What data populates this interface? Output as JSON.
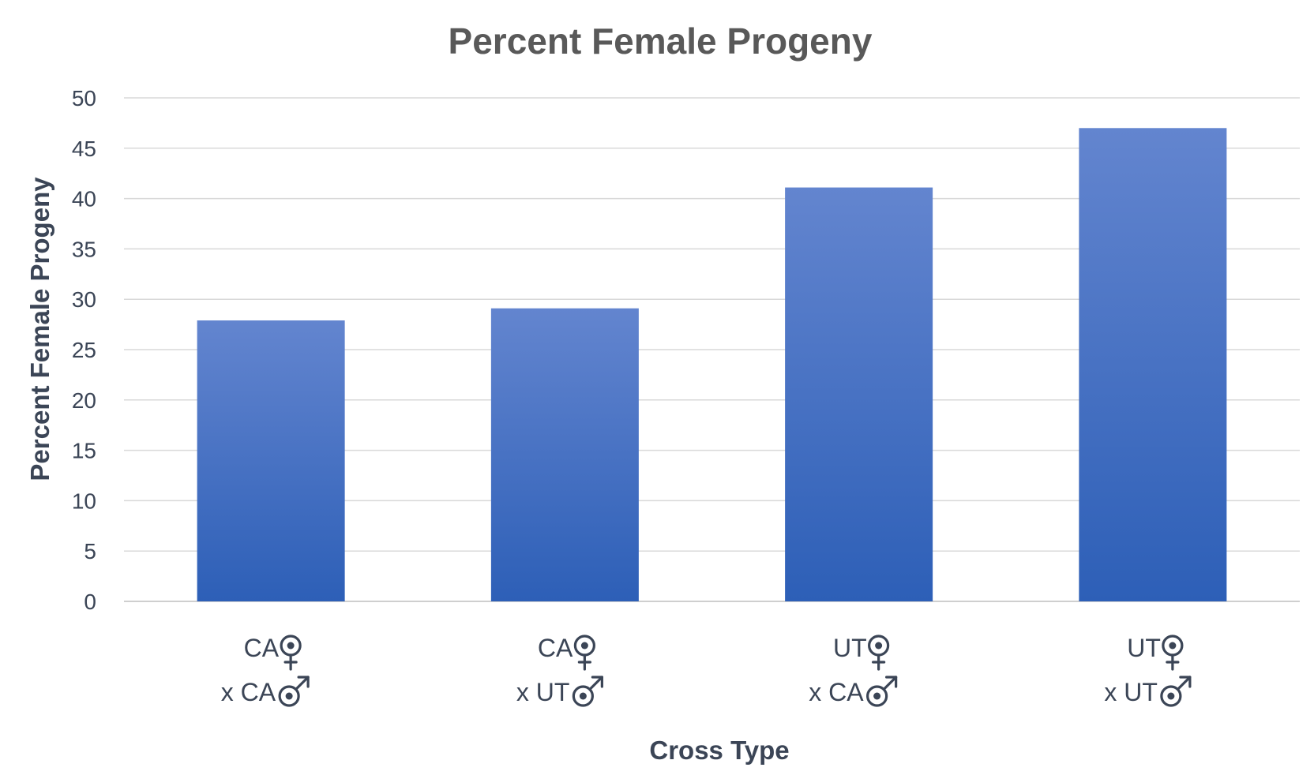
{
  "chart_data": {
    "type": "bar",
    "title": "Percent Female Progeny",
    "xlabel": "Cross Type",
    "ylabel": "Percent Female Progeny",
    "ylim": [
      0,
      50
    ],
    "ytick_step": 5,
    "grid": true,
    "legend": "none",
    "bar_color_top": "#6385cf",
    "bar_color_bottom": "#2d5fb7",
    "categories": [
      {
        "female_parent": "CA",
        "male_parent": "x CA"
      },
      {
        "female_parent": "CA",
        "male_parent": "x UT"
      },
      {
        "female_parent": "UT",
        "male_parent": "x CA"
      },
      {
        "female_parent": "UT",
        "male_parent": "x UT"
      }
    ],
    "female_symbol": "female-symbol-icon",
    "male_symbol": "male-symbol-icon",
    "values": [
      27.9,
      29.1,
      41.1,
      47.0
    ]
  }
}
